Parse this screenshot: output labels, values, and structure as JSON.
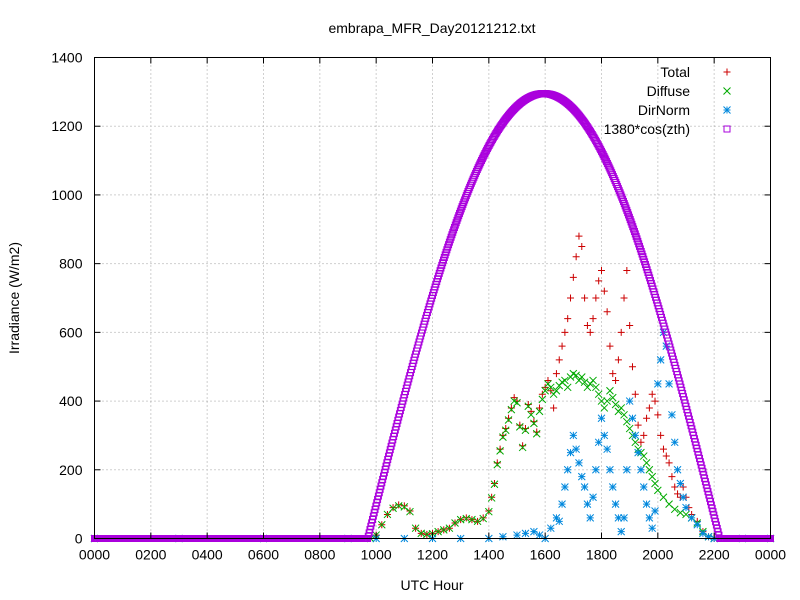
{
  "chart_data": {
    "type": "scatter",
    "title": "embrapa_MFR_Day20121212.txt",
    "xlabel": "UTC Hour",
    "ylabel": "Irradiance (W/m2)",
    "xlim": [
      0,
      24
    ],
    "ylim": [
      0,
      1400
    ],
    "x_ticks": [
      0,
      2,
      4,
      6,
      8,
      10,
      12,
      14,
      16,
      18,
      20,
      22,
      24
    ],
    "x_tick_labels": [
      "0000",
      "0200",
      "0400",
      "0600",
      "0800",
      "1000",
      "1200",
      "1400",
      "1600",
      "1800",
      "2000",
      "2200",
      "0000"
    ],
    "y_ticks": [
      0,
      200,
      400,
      600,
      800,
      1000,
      1200,
      1400
    ],
    "y_tick_labels": [
      "0",
      "200",
      "400",
      "600",
      "800",
      "1000",
      "1200",
      "1400"
    ],
    "grid": true,
    "legend_position": "top-right",
    "series": [
      {
        "name": "Total",
        "color": "#cc0000",
        "marker": "plus",
        "points": [
          [
            0,
            0
          ],
          [
            3,
            0
          ],
          [
            6,
            0
          ],
          [
            9,
            0
          ],
          [
            9.8,
            0
          ],
          [
            10.0,
            10
          ],
          [
            10.2,
            40
          ],
          [
            10.4,
            70
          ],
          [
            10.6,
            90
          ],
          [
            10.8,
            98
          ],
          [
            11.0,
            95
          ],
          [
            11.2,
            80
          ],
          [
            11.4,
            30
          ],
          [
            11.6,
            15
          ],
          [
            11.8,
            12
          ],
          [
            12.0,
            15
          ],
          [
            12.2,
            20
          ],
          [
            12.4,
            25
          ],
          [
            12.6,
            30
          ],
          [
            12.8,
            45
          ],
          [
            13.0,
            55
          ],
          [
            13.2,
            60
          ],
          [
            13.4,
            55
          ],
          [
            13.6,
            50
          ],
          [
            13.8,
            60
          ],
          [
            14.0,
            80
          ],
          [
            14.1,
            120
          ],
          [
            14.2,
            160
          ],
          [
            14.3,
            220
          ],
          [
            14.4,
            260
          ],
          [
            14.5,
            300
          ],
          [
            14.6,
            320
          ],
          [
            14.7,
            350
          ],
          [
            14.8,
            380
          ],
          [
            14.9,
            410
          ],
          [
            15.0,
            400
          ],
          [
            15.1,
            330
          ],
          [
            15.2,
            270
          ],
          [
            15.3,
            320
          ],
          [
            15.4,
            390
          ],
          [
            15.5,
            370
          ],
          [
            15.6,
            340
          ],
          [
            15.7,
            310
          ],
          [
            15.8,
            380
          ],
          [
            15.9,
            420
          ],
          [
            16.0,
            440
          ],
          [
            16.1,
            460
          ],
          [
            16.2,
            430
          ],
          [
            16.3,
            380
          ],
          [
            16.4,
            480
          ],
          [
            16.5,
            520
          ],
          [
            16.6,
            560
          ],
          [
            16.7,
            600
          ],
          [
            16.8,
            640
          ],
          [
            16.9,
            700
          ],
          [
            17.0,
            760
          ],
          [
            17.1,
            820
          ],
          [
            17.2,
            880
          ],
          [
            17.3,
            850
          ],
          [
            17.4,
            700
          ],
          [
            17.5,
            620
          ],
          [
            17.6,
            600
          ],
          [
            17.7,
            640
          ],
          [
            17.8,
            700
          ],
          [
            17.9,
            750
          ],
          [
            18.0,
            780
          ],
          [
            18.1,
            720
          ],
          [
            18.2,
            660
          ],
          [
            18.3,
            560
          ],
          [
            18.4,
            480
          ],
          [
            18.5,
            460
          ],
          [
            18.6,
            520
          ],
          [
            18.7,
            600
          ],
          [
            18.8,
            700
          ],
          [
            18.9,
            780
          ],
          [
            19.0,
            620
          ],
          [
            19.1,
            500
          ],
          [
            19.2,
            420
          ],
          [
            19.3,
            330
          ],
          [
            19.4,
            280
          ],
          [
            19.5,
            300
          ],
          [
            19.6,
            350
          ],
          [
            19.7,
            380
          ],
          [
            19.8,
            420
          ],
          [
            19.9,
            400
          ],
          [
            20.0,
            360
          ],
          [
            20.1,
            300
          ],
          [
            20.2,
            260
          ],
          [
            20.3,
            240
          ],
          [
            20.4,
            220
          ],
          [
            20.5,
            180
          ],
          [
            20.6,
            150
          ],
          [
            20.7,
            130
          ],
          [
            20.8,
            120
          ],
          [
            20.9,
            150
          ],
          [
            21.0,
            120
          ],
          [
            21.1,
            90
          ],
          [
            21.2,
            70
          ],
          [
            21.4,
            50
          ],
          [
            21.6,
            20
          ],
          [
            21.8,
            5
          ],
          [
            22.0,
            0
          ],
          [
            23,
            0
          ],
          [
            24,
            0
          ]
        ]
      },
      {
        "name": "Diffuse",
        "color": "#00aa00",
        "marker": "cross",
        "points": [
          [
            0,
            0
          ],
          [
            3,
            0
          ],
          [
            6,
            0
          ],
          [
            9,
            0
          ],
          [
            9.8,
            0
          ],
          [
            10.0,
            10
          ],
          [
            10.2,
            40
          ],
          [
            10.4,
            70
          ],
          [
            10.6,
            88
          ],
          [
            10.8,
            95
          ],
          [
            11.0,
            92
          ],
          [
            11.2,
            78
          ],
          [
            11.4,
            30
          ],
          [
            11.6,
            15
          ],
          [
            11.8,
            12
          ],
          [
            12.0,
            14
          ],
          [
            12.2,
            20
          ],
          [
            12.4,
            25
          ],
          [
            12.6,
            30
          ],
          [
            12.8,
            45
          ],
          [
            13.0,
            55
          ],
          [
            13.2,
            58
          ],
          [
            13.4,
            55
          ],
          [
            13.6,
            50
          ],
          [
            13.8,
            58
          ],
          [
            14.0,
            78
          ],
          [
            14.1,
            118
          ],
          [
            14.2,
            158
          ],
          [
            14.3,
            215
          ],
          [
            14.4,
            255
          ],
          [
            14.5,
            295
          ],
          [
            14.6,
            315
          ],
          [
            14.7,
            345
          ],
          [
            14.8,
            375
          ],
          [
            14.9,
            400
          ],
          [
            15.0,
            395
          ],
          [
            15.1,
            325
          ],
          [
            15.2,
            265
          ],
          [
            15.3,
            315
          ],
          [
            15.4,
            385
          ],
          [
            15.5,
            360
          ],
          [
            15.6,
            335
          ],
          [
            15.7,
            305
          ],
          [
            15.8,
            370
          ],
          [
            15.9,
            405
          ],
          [
            16.0,
            430
          ],
          [
            16.1,
            450
          ],
          [
            16.2,
            440
          ],
          [
            16.3,
            420
          ],
          [
            16.4,
            430
          ],
          [
            16.5,
            445
          ],
          [
            16.6,
            455
          ],
          [
            16.7,
            460
          ],
          [
            16.8,
            440
          ],
          [
            16.9,
            470
          ],
          [
            17.0,
            480
          ],
          [
            17.1,
            475
          ],
          [
            17.2,
            460
          ],
          [
            17.3,
            470
          ],
          [
            17.4,
            455
          ],
          [
            17.5,
            440
          ],
          [
            17.6,
            450
          ],
          [
            17.7,
            460
          ],
          [
            17.8,
            440
          ],
          [
            17.9,
            420
          ],
          [
            18.0,
            400
          ],
          [
            18.1,
            380
          ],
          [
            18.2,
            400
          ],
          [
            18.3,
            430
          ],
          [
            18.4,
            410
          ],
          [
            18.5,
            390
          ],
          [
            18.6,
            370
          ],
          [
            18.7,
            380
          ],
          [
            18.8,
            360
          ],
          [
            18.9,
            340
          ],
          [
            19.0,
            320
          ],
          [
            19.1,
            300
          ],
          [
            19.2,
            280
          ],
          [
            19.3,
            260
          ],
          [
            19.4,
            250
          ],
          [
            19.5,
            240
          ],
          [
            19.6,
            220
          ],
          [
            19.7,
            200
          ],
          [
            19.8,
            180
          ],
          [
            19.9,
            160
          ],
          [
            20.0,
            140
          ],
          [
            20.2,
            120
          ],
          [
            20.4,
            100
          ],
          [
            20.6,
            85
          ],
          [
            20.8,
            75
          ],
          [
            21.0,
            70
          ],
          [
            21.2,
            60
          ],
          [
            21.4,
            45
          ],
          [
            21.6,
            20
          ],
          [
            21.8,
            5
          ],
          [
            22.0,
            0
          ],
          [
            23,
            0
          ],
          [
            24,
            0
          ]
        ]
      },
      {
        "name": "DirNorm",
        "color": "#0088dd",
        "marker": "star",
        "points": [
          [
            0,
            0
          ],
          [
            3,
            0
          ],
          [
            6,
            0
          ],
          [
            9,
            0
          ],
          [
            10,
            0
          ],
          [
            11,
            0
          ],
          [
            12,
            0
          ],
          [
            13,
            0
          ],
          [
            14,
            0
          ],
          [
            14.5,
            5
          ],
          [
            15.0,
            10
          ],
          [
            15.3,
            15
          ],
          [
            15.6,
            20
          ],
          [
            15.8,
            10
          ],
          [
            16.0,
            0
          ],
          [
            16.2,
            30
          ],
          [
            16.4,
            60
          ],
          [
            16.5,
            50
          ],
          [
            16.6,
            100
          ],
          [
            16.7,
            150
          ],
          [
            16.8,
            200
          ],
          [
            16.9,
            250
          ],
          [
            17.0,
            300
          ],
          [
            17.1,
            260
          ],
          [
            17.2,
            220
          ],
          [
            17.3,
            180
          ],
          [
            17.4,
            150
          ],
          [
            17.5,
            100
          ],
          [
            17.6,
            60
          ],
          [
            17.7,
            120
          ],
          [
            17.8,
            200
          ],
          [
            17.9,
            280
          ],
          [
            18.0,
            350
          ],
          [
            18.1,
            300
          ],
          [
            18.2,
            260
          ],
          [
            18.3,
            200
          ],
          [
            18.4,
            150
          ],
          [
            18.5,
            100
          ],
          [
            18.6,
            60
          ],
          [
            18.7,
            20
          ],
          [
            18.8,
            60
          ],
          [
            18.9,
            200
          ],
          [
            19.0,
            400
          ],
          [
            19.1,
            350
          ],
          [
            19.2,
            300
          ],
          [
            19.3,
            250
          ],
          [
            19.4,
            200
          ],
          [
            19.5,
            150
          ],
          [
            19.6,
            100
          ],
          [
            19.7,
            60
          ],
          [
            19.8,
            30
          ],
          [
            19.9,
            80
          ],
          [
            20.0,
            450
          ],
          [
            20.1,
            520
          ],
          [
            20.2,
            600
          ],
          [
            20.3,
            560
          ],
          [
            20.4,
            450
          ],
          [
            20.5,
            360
          ],
          [
            20.6,
            280
          ],
          [
            20.7,
            200
          ],
          [
            20.8,
            160
          ],
          [
            20.9,
            120
          ],
          [
            21.0,
            90
          ],
          [
            21.2,
            60
          ],
          [
            21.4,
            40
          ],
          [
            21.6,
            15
          ],
          [
            21.8,
            5
          ],
          [
            22.0,
            0
          ],
          [
            23,
            0
          ],
          [
            24,
            0
          ]
        ]
      },
      {
        "name": "1380*cos(zth)",
        "color": "#aa00dd",
        "marker": "square",
        "curve": {
          "sunrise": 9.7,
          "sunset": 22.2,
          "noon": 15.95,
          "peak": 1295,
          "step": 0.03
        }
      }
    ]
  }
}
